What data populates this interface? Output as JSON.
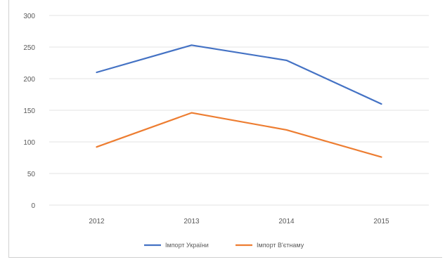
{
  "chart_data": {
    "type": "line",
    "title": "",
    "xlabel": "",
    "ylabel": "",
    "categories": [
      "2012",
      "2013",
      "2014",
      "2015"
    ],
    "ylim": [
      0,
      300
    ],
    "yticks": [
      0,
      50,
      100,
      150,
      200,
      250,
      300
    ],
    "grid": true,
    "legend_position": "bottom",
    "series": [
      {
        "name": "Імпорт України",
        "color": "#4472C4",
        "values": [
          210,
          253,
          229,
          160
        ]
      },
      {
        "name": "Імпорт В'єтнаму",
        "color": "#ED7D31",
        "values": [
          92,
          146,
          119,
          76
        ]
      }
    ]
  }
}
